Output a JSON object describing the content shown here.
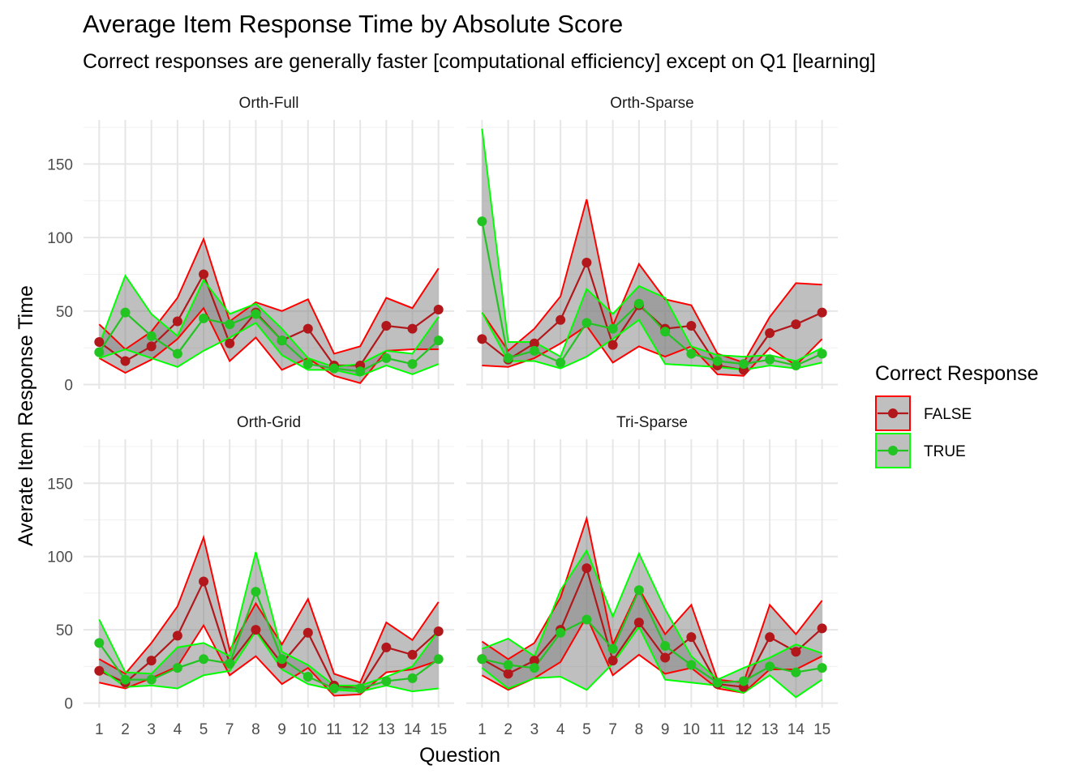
{
  "chart_data": {
    "type": "line",
    "title": "Average Item Response Time by Absolute Score",
    "subtitle": "Correct responses are generally faster [computational efficiency] except on Q1 [learning]",
    "xlabel": "Question",
    "ylabel": "Averate Item Response Time",
    "x_categories": [
      "1",
      "2",
      "3",
      "4",
      "5",
      "7",
      "8",
      "9",
      "10",
      "11",
      "12",
      "13",
      "14",
      "15"
    ],
    "y_ticks": [
      0,
      50,
      100,
      150
    ],
    "ylim": [
      -3,
      180
    ],
    "grid": true,
    "legend": {
      "title": "Correct Response",
      "position": "right",
      "entries": [
        {
          "label": "FALSE",
          "color": "#ff0000",
          "point_color": "#b2181b"
        },
        {
          "label": "TRUE",
          "color": "#00ff00",
          "point_color": "#22c422"
        }
      ]
    },
    "band_fill": "#808080",
    "panels": [
      {
        "name": "Orth-Full",
        "series": [
          {
            "name": "FALSE",
            "mean": [
              29,
              16,
              26,
              43,
              75,
              28,
              49,
              30,
              38,
              13,
              13,
              40,
              38,
              51
            ],
            "upper": [
              41,
              24,
              36,
              59,
              99,
              43,
              56,
              50,
              58,
              21,
              26,
              59,
              52,
              79
            ],
            "lower": [
              18,
              8,
              17,
              31,
              52,
              16,
              32,
              10,
              18,
              6,
              1,
              23,
              24,
              24
            ]
          },
          {
            "name": "TRUE",
            "mean": [
              22,
              49,
              33,
              21,
              45,
              41,
              48,
              30,
              14,
              11,
              9,
              18,
              14,
              30
            ],
            "upper": [
              27,
              74,
              48,
              33,
              71,
              48,
              55,
              38,
              18,
              12,
              14,
              23,
              21,
              46
            ],
            "lower": [
              18,
              24,
              18,
              12,
              23,
              32,
              42,
              20,
              10,
              10,
              6,
              13,
              7,
              14
            ]
          }
        ]
      },
      {
        "name": "Orth-Sparse",
        "series": [
          {
            "name": "FALSE",
            "mean": [
              31,
              17,
              28,
              44,
              83,
              27,
              54,
              38,
              40,
              13,
              10,
              35,
              41,
              49
            ],
            "upper": [
              49,
              23,
              38,
              60,
              126,
              40,
              82,
              58,
              54,
              21,
              15,
              46,
              69,
              68
            ],
            "lower": [
              13,
              12,
              18,
              28,
              40,
              15,
              26,
              19,
              26,
              7,
              6,
              25,
              13,
              31
            ]
          },
          {
            "name": "TRUE",
            "mean": [
              111,
              18,
              23,
              15,
              42,
              38,
              55,
              36,
              21,
              16,
              14,
              17,
              13,
              21
            ],
            "upper": [
              174,
              29,
              29,
              19,
              65,
              48,
              67,
              59,
              26,
              20,
              19,
              20,
              16,
              25
            ],
            "lower": [
              49,
              16,
              16,
              11,
              19,
              31,
              44,
              14,
              13,
              12,
              10,
              13,
              11,
              15
            ]
          }
        ]
      },
      {
        "name": "Orth-Grid",
        "series": [
          {
            "name": "FALSE",
            "mean": [
              22,
              14,
              29,
              46,
              83,
              27,
              50,
              27,
              48,
              12,
              10,
              38,
              33,
              49
            ],
            "upper": [
              30,
              20,
              41,
              66,
              113,
              36,
              68,
              40,
              71,
              20,
              14,
              55,
              43,
              69
            ],
            "lower": [
              14,
              10,
              17,
              25,
              53,
              19,
              32,
              13,
              24,
              5,
              6,
              21,
              23,
              29
            ]
          },
          {
            "name": "TRUE",
            "mean": [
              41,
              16,
              16,
              24,
              30,
              27,
              76,
              30,
              18,
              10,
              10,
              15,
              17,
              30
            ],
            "upper": [
              57,
              21,
              20,
              38,
              41,
              32,
              103,
              35,
              26,
              12,
              12,
              18,
              25,
              49
            ],
            "lower": [
              24,
              11,
              12,
              10,
              19,
              22,
              49,
              23,
              13,
              9,
              8,
              12,
              8,
              10
            ]
          }
        ]
      },
      {
        "name": "Tri-Sparse",
        "series": [
          {
            "name": "FALSE",
            "mean": [
              30,
              20,
              29,
              50,
              92,
              29,
              55,
              31,
              45,
              13,
              11,
              45,
              35,
              51
            ],
            "upper": [
              42,
              30,
              41,
              72,
              126,
              40,
              78,
              47,
              67,
              16,
              14,
              67,
              47,
              70
            ],
            "lower": [
              19,
              9,
              17,
              28,
              59,
              19,
              33,
              20,
              24,
              10,
              7,
              23,
              23,
              32
            ]
          },
          {
            "name": "TRUE",
            "mean": [
              30,
              26,
              24,
              48,
              57,
              37,
              77,
              39,
              26,
              14,
              15,
              25,
              21,
              24
            ],
            "upper": [
              37,
              44,
              32,
              77,
              104,
              59,
              102,
              64,
              32,
              16,
              24,
              31,
              40,
              34
            ],
            "lower": [
              24,
              10,
              17,
              18,
              9,
              27,
              52,
              16,
              14,
              12,
              7,
              19,
              4,
              16
            ]
          }
        ]
      }
    ]
  }
}
